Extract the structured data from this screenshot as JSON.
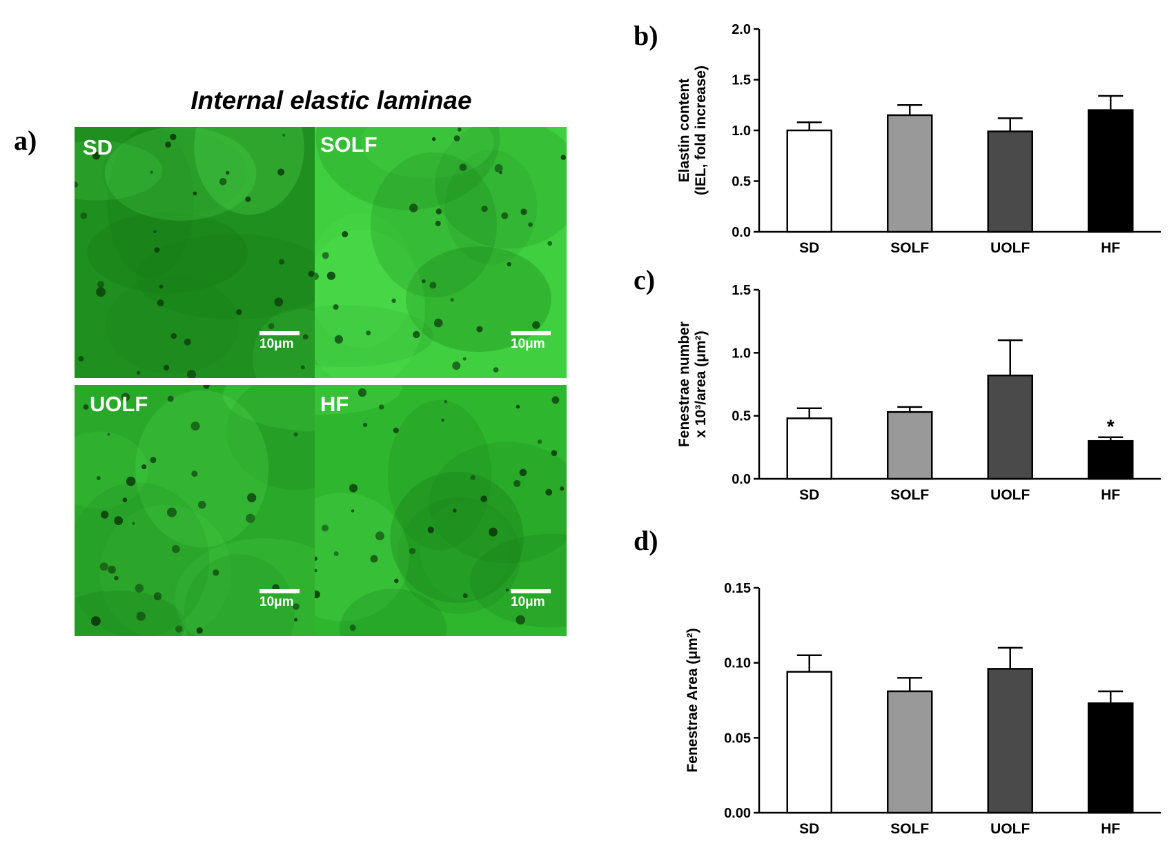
{
  "figure_title": "Internal elastic laminae",
  "panel_letters": {
    "a": "a)",
    "b": "b)",
    "c": "c)",
    "d": "d)"
  },
  "micrographs": [
    {
      "label": "SD",
      "scale_label": "10μm",
      "tint": "#1f8f1f"
    },
    {
      "label": "SOLF",
      "scale_label": "10μm",
      "tint": "#3fcf3f"
    },
    {
      "label": "UOLF",
      "scale_label": "10μm",
      "tint": "#2aa82a"
    },
    {
      "label": "HF",
      "scale_label": "10μm",
      "tint": "#2eb62e"
    }
  ],
  "bar_colors": [
    "#ffffff",
    "#999999",
    "#4a4a4a",
    "#000000"
  ],
  "chart_data": [
    {
      "type": "bar",
      "panel": "b)",
      "categories": [
        "SD",
        "SOLF",
        "UOLF",
        "HF"
      ],
      "values": [
        1.0,
        1.15,
        0.99,
        1.2
      ],
      "errors": [
        0.08,
        0.1,
        0.13,
        0.14
      ],
      "annotations": [
        "",
        "",
        "",
        ""
      ],
      "ylabel_lines": [
        "Elastin content",
        "(IEL, fold increase)"
      ],
      "ylim": [
        0,
        2.0
      ],
      "yticks": [
        "0.0",
        "0.5",
        "1.0",
        "1.5",
        "2.0"
      ],
      "ytick_values": [
        0,
        0.5,
        1.0,
        1.5,
        2.0
      ]
    },
    {
      "type": "bar",
      "panel": "c)",
      "categories": [
        "SD",
        "SOLF",
        "UOLF",
        "HF"
      ],
      "values": [
        0.48,
        0.53,
        0.82,
        0.3
      ],
      "errors": [
        0.08,
        0.04,
        0.28,
        0.03
      ],
      "annotations": [
        "",
        "",
        "",
        "*"
      ],
      "ylabel_lines": [
        "Fenestrae number",
        "x 10³/area (μm²)"
      ],
      "ylim": [
        0,
        1.5
      ],
      "yticks": [
        "0.0",
        "0.5",
        "1.0",
        "1.5"
      ],
      "ytick_values": [
        0,
        0.5,
        1.0,
        1.5
      ]
    },
    {
      "type": "bar",
      "panel": "d)",
      "categories": [
        "SD",
        "SOLF",
        "UOLF",
        "HF"
      ],
      "values": [
        0.094,
        0.081,
        0.096,
        0.073
      ],
      "errors": [
        0.011,
        0.009,
        0.014,
        0.008
      ],
      "annotations": [
        "",
        "",
        "",
        ""
      ],
      "ylabel_lines": [
        "Fenestrae Area (μm²)"
      ],
      "ylim": [
        0,
        0.15
      ],
      "yticks": [
        "0.00",
        "0.05",
        "0.10",
        "0.15"
      ],
      "ytick_values": [
        0,
        0.05,
        0.1,
        0.15
      ]
    }
  ]
}
